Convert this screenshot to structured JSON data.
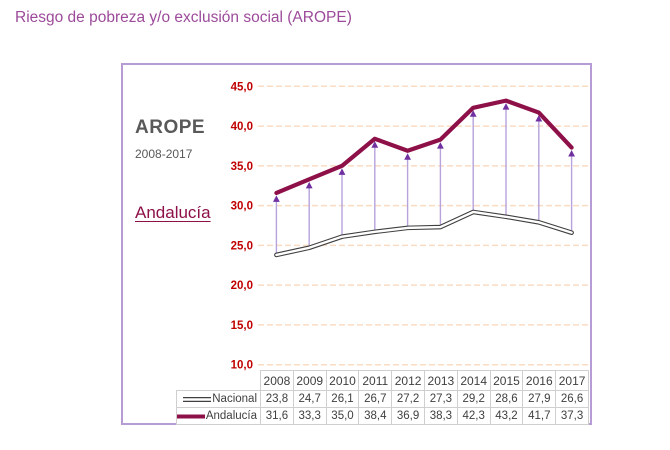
{
  "page_title": "Riesgo de pobreza y/o exclusión social (AROPE)",
  "panel": {
    "heading": "AROPE",
    "period": "2008-2017",
    "region": "Andalucía"
  },
  "chart_data": {
    "type": "line",
    "title": "AROPE 2008-2017 Andalucía",
    "categories": [
      "2008",
      "2009",
      "2010",
      "2011",
      "2012",
      "2013",
      "2014",
      "2015",
      "2016",
      "2017"
    ],
    "series": [
      {
        "name": "Nacional",
        "values": [
          23.8,
          24.7,
          26.1,
          26.7,
          27.2,
          27.3,
          29.2,
          28.6,
          27.9,
          26.6
        ],
        "line_style": "double-outline-white"
      },
      {
        "name": "Andalucía",
        "values": [
          31.6,
          33.3,
          35.0,
          38.4,
          36.9,
          38.3,
          42.3,
          43.2,
          41.7,
          37.3
        ],
        "line_style": "thick-solid"
      }
    ],
    "ylim": [
      10,
      45
    ],
    "ytick_step": 5,
    "decimal_separator": ",",
    "grid": "horizontal-dashed",
    "legend_position": "table-left-column",
    "annotations": "vertical purple arrows from Nacional value up to Andalucía value at each year"
  },
  "colors": {
    "title_text": "#9c4a9a",
    "frame_border": "#b79bd4",
    "panel_text": "#595959",
    "region_text": "#8e1048",
    "axis_label": "#c00000",
    "gridline": "#fadcc3",
    "nacional_outline": "#3f3f3f",
    "nacional_fill": "#ffffff",
    "andalucia_line": "#8e1048",
    "arrow_shaft": "#b6a2dc",
    "arrow_head": "#7030a0",
    "table_border": "#d0cece",
    "table_text": "#404040"
  }
}
